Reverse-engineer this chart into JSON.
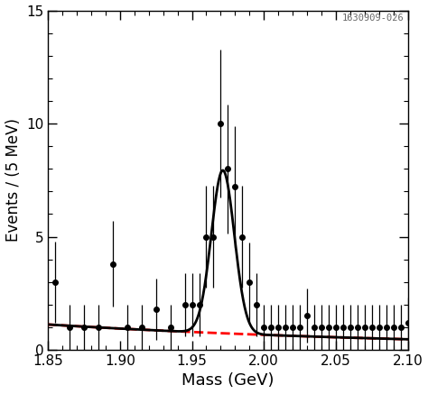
{
  "xlabel": "Mass (GeV)",
  "ylabel": "Events / (5 MeV)",
  "xlim": [
    1.85,
    2.1
  ],
  "ylim": [
    0,
    15
  ],
  "watermark": "1630909-026",
  "data_x": [
    1.855,
    1.865,
    1.875,
    1.885,
    1.895,
    1.905,
    1.915,
    1.925,
    1.935,
    1.945,
    1.95,
    1.955,
    1.96,
    1.965,
    1.97,
    1.975,
    1.98,
    1.985,
    1.99,
    1.995,
    2.0,
    2.005,
    2.01,
    2.015,
    2.02,
    2.025,
    2.03,
    2.035,
    2.04,
    2.045,
    2.05,
    2.055,
    2.06,
    2.065,
    2.07,
    2.075,
    2.08,
    2.085,
    2.09,
    2.095,
    2.1
  ],
  "data_y": [
    3.0,
    1.0,
    1.0,
    1.0,
    3.8,
    1.0,
    1.0,
    1.8,
    1.0,
    2.0,
    2.0,
    2.0,
    5.0,
    5.0,
    10.0,
    8.0,
    7.2,
    5.0,
    3.0,
    2.0,
    1.0,
    1.0,
    1.0,
    1.0,
    1.0,
    1.0,
    1.5,
    1.0,
    1.0,
    1.0,
    1.0,
    1.0,
    1.0,
    1.0,
    1.0,
    1.0,
    1.0,
    1.0,
    1.0,
    1.0,
    1.2
  ],
  "data_yerr": [
    1.8,
    1.0,
    1.0,
    1.0,
    1.9,
    1.0,
    1.0,
    1.35,
    1.0,
    1.4,
    1.4,
    1.4,
    2.25,
    2.25,
    3.25,
    2.85,
    2.7,
    2.25,
    1.75,
    1.4,
    1.0,
    1.0,
    1.0,
    1.0,
    1.0,
    1.0,
    1.2,
    1.0,
    1.0,
    1.0,
    1.0,
    1.0,
    1.0,
    1.0,
    1.0,
    1.0,
    1.0,
    1.0,
    1.0,
    1.0,
    1.1
  ],
  "signal_mean": 1.9715,
  "signal_sigma": 0.008,
  "signal_amplitude": 7.2,
  "bg_a": 1.12,
  "bg_b": -3.5,
  "bg_color": "#ff0000",
  "signal_color": "#000000",
  "data_color": "#000000",
  "xtick_major": 0.05,
  "xtick_minor": 0.01,
  "ytick_major": 5,
  "ytick_minor": 1,
  "figsize": [
    4.74,
    4.37
  ],
  "dpi": 100
}
